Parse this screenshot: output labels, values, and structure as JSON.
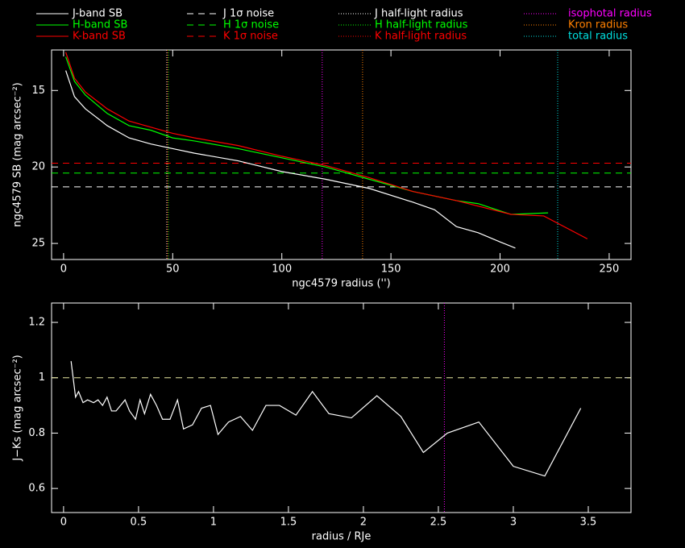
{
  "chart_data": [
    {
      "type": "line",
      "xlabel": "ngc4579 radius ('')",
      "ylabel": "ngc4579 SB (mag arcsec⁻²)",
      "xlim": [
        -5.5,
        260
      ],
      "ylim": [
        26.05,
        12.35
      ],
      "xticks": [
        0,
        50,
        100,
        150,
        200,
        250
      ],
      "yticks": [
        15,
        20,
        25
      ],
      "series": [
        {
          "name": "J-band SB",
          "color": "#ffffff",
          "x": [
            1,
            5,
            10,
            20,
            30,
            40,
            50,
            60,
            80,
            100,
            120,
            140,
            160,
            170,
            180,
            190,
            200,
            207
          ],
          "values": [
            13.7,
            15.4,
            16.2,
            17.3,
            18.1,
            18.5,
            18.8,
            19.1,
            19.6,
            20.3,
            20.8,
            21.4,
            22.3,
            22.8,
            23.9,
            24.3,
            24.9,
            25.3
          ]
        },
        {
          "name": "H-band SB",
          "color": "#00ff00",
          "x": [
            1,
            5,
            10,
            20,
            30,
            40,
            50,
            60,
            80,
            100,
            120,
            140,
            160,
            180,
            190,
            205,
            222
          ],
          "values": [
            12.8,
            14.4,
            15.3,
            16.5,
            17.3,
            17.6,
            18.1,
            18.3,
            18.8,
            19.4,
            20.0,
            20.8,
            21.6,
            22.2,
            22.4,
            23.1,
            23.0
          ]
        },
        {
          "name": "K-band SB",
          "color": "#ff0000",
          "x": [
            1,
            5,
            10,
            20,
            30,
            40,
            50,
            60,
            80,
            100,
            120,
            140,
            160,
            180,
            205,
            220,
            240
          ],
          "values": [
            12.5,
            14.2,
            15.1,
            16.2,
            17.0,
            17.4,
            17.8,
            18.1,
            18.6,
            19.3,
            19.9,
            20.7,
            21.6,
            22.2,
            23.1,
            23.2,
            24.7
          ]
        }
      ],
      "hlines": [
        {
          "name": "J 1σ noise",
          "color": "#ffffff",
          "value": 21.3
        },
        {
          "name": "H 1σ noise",
          "color": "#00ff00",
          "value": 20.4
        },
        {
          "name": "K 1σ noise",
          "color": "#ff0000",
          "value": 19.75
        }
      ],
      "vlines": [
        {
          "name": "J half-light radius",
          "color": "#ffffff",
          "value": 47.3
        },
        {
          "name": "H half-light radius",
          "color": "#00ff00",
          "value": 48.0
        },
        {
          "name": "K half-light radius",
          "color": "#ff0000",
          "value": 47.6
        },
        {
          "name": "isophotal radius",
          "color": "#ff00ff",
          "value": 118.5
        },
        {
          "name": "Kron radius",
          "color": "#ff8000",
          "value": 137
        },
        {
          "name": "total radius",
          "color": "#00e0e0",
          "value": 226.4
        }
      ]
    },
    {
      "type": "line",
      "xlabel": "radius / RJe",
      "ylabel": "J−Ks (mag arcsec⁻²)",
      "xlim": [
        -0.08,
        3.785
      ],
      "ylim": [
        0.513,
        1.27
      ],
      "xticks": [
        0,
        0.5,
        1,
        1.5,
        2,
        2.5,
        3,
        3.5
      ],
      "yticks": [
        0.6,
        0.8,
        1,
        1.2
      ],
      "series": [
        {
          "color": "#ffffff",
          "x": [
            0.05,
            0.08,
            0.1,
            0.13,
            0.16,
            0.2,
            0.23,
            0.26,
            0.29,
            0.32,
            0.35,
            0.38,
            0.41,
            0.44,
            0.48,
            0.51,
            0.54,
            0.58,
            0.62,
            0.66,
            0.71,
            0.76,
            0.8,
            0.86,
            0.92,
            0.98,
            1.03,
            1.1,
            1.18,
            1.26,
            1.35,
            1.44,
            1.55,
            1.66,
            1.77,
            1.92,
            2.09,
            2.25,
            2.4,
            2.56,
            2.77,
            3.0,
            3.21,
            3.45
          ],
          "values": [
            1.06,
            0.93,
            0.95,
            0.91,
            0.92,
            0.91,
            0.92,
            0.9,
            0.93,
            0.88,
            0.88,
            0.9,
            0.92,
            0.88,
            0.85,
            0.92,
            0.87,
            0.94,
            0.9,
            0.85,
            0.85,
            0.92,
            0.815,
            0.83,
            0.89,
            0.9,
            0.795,
            0.84,
            0.86,
            0.81,
            0.9,
            0.9,
            0.865,
            0.95,
            0.87,
            0.855,
            0.935,
            0.86,
            0.73,
            0.8,
            0.84,
            0.68,
            0.645,
            0.89
          ]
        }
      ],
      "hlines": [
        {
          "color": "#e8e8a0",
          "value": 1
        }
      ],
      "vlines": [
        {
          "color": "#ff00ff",
          "value": 2.54
        }
      ]
    }
  ]
}
